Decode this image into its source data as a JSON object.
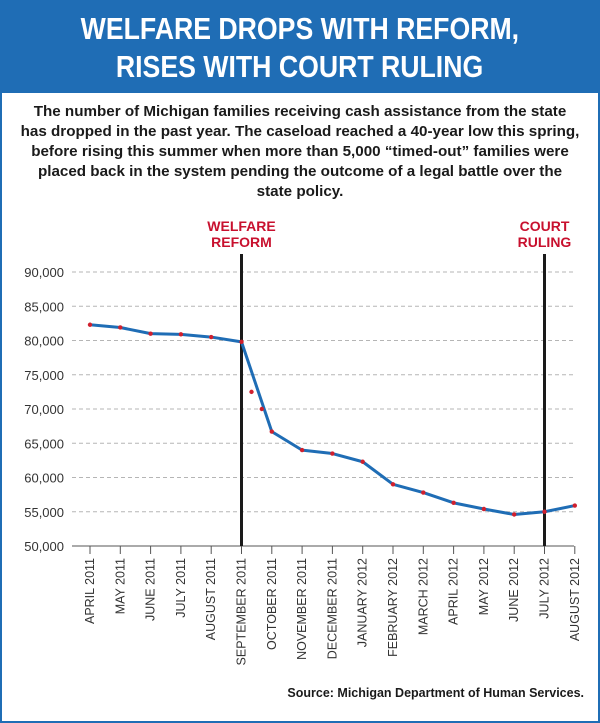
{
  "header": {
    "title_line1": "WELFARE DROPS WITH REFORM,",
    "title_line2": "RISES WITH COURT RULING"
  },
  "deck": "The number of Michigan families receiving cash assistance from the state has dropped in the past year. The caseload reached a 40-year low this spring, before rising this summer when more than 5,000 “timed-out” families were placed back in the system pending the outcome of a legal battle over the state policy.",
  "source": "Source: Michigan Department of Human Services.",
  "colors": {
    "banner": "#1f6db5",
    "line": "#1f6db5",
    "points": "#d0202e",
    "annotation_text": "#c8102e",
    "grid": "#b5b5b5"
  },
  "chart_data": {
    "type": "line",
    "title": "",
    "xlabel": "",
    "ylabel": "",
    "ylim": [
      50000,
      90000
    ],
    "y_ticks": [
      50000,
      55000,
      60000,
      65000,
      70000,
      75000,
      80000,
      85000,
      90000
    ],
    "y_tick_labels": [
      "50,000",
      "55,000",
      "60,000",
      "65,000",
      "70,000",
      "75,000",
      "80,000",
      "85,000",
      "90,000"
    ],
    "grid": true,
    "categories": [
      "APRIL 2011",
      "MAY 2011",
      "JUNE 2011",
      "JULY 2011",
      "AUGUST 2011",
      "SEPTEMBER 2011",
      "OCTOBER 2011",
      "NOVEMBER 2011",
      "DECEMBER 2011",
      "JANUARY 2012",
      "FEBRUARY 2012",
      "MARCH 2012",
      "APRIL 2012",
      "MAY 2012",
      "JUNE 2012",
      "JULY 2012",
      "AUGUST 2012"
    ],
    "series": [
      {
        "values": [
          82300,
          81900,
          81000,
          80900,
          80500,
          79800,
          66700,
          64000,
          63500,
          62300,
          59000,
          57800,
          56300,
          55400,
          54600,
          55000,
          55900
        ]
      }
    ],
    "extra_points": [
      {
        "x_index": 5.33,
        "value": 72500
      },
      {
        "x_index": 5.67,
        "value": 70000
      }
    ],
    "annotations": [
      {
        "label_line1": "WELFARE",
        "label_line2": "REFORM",
        "x_index": 5
      },
      {
        "label_line1": "COURT",
        "label_line2": "RULING",
        "x_index": 15
      }
    ]
  }
}
